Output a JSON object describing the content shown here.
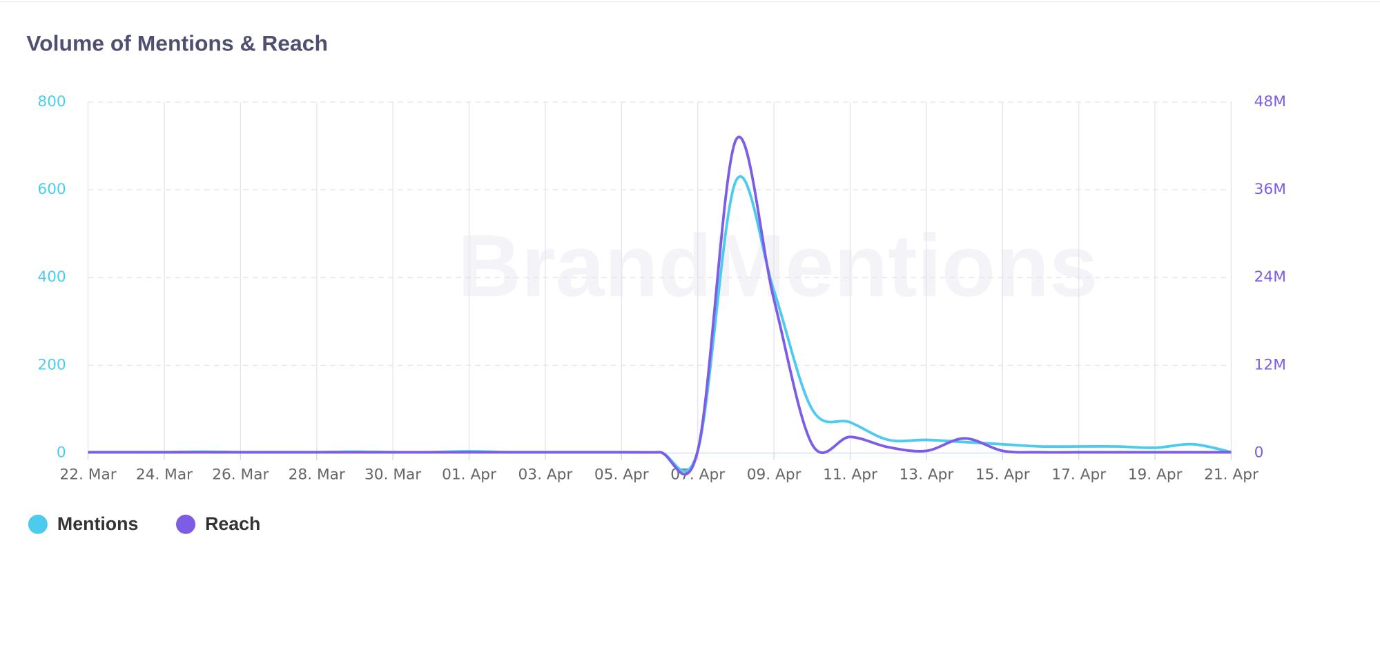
{
  "chart_data": {
    "type": "line",
    "title": "Volume of Mentions & Reach",
    "watermark": "BrandMentions",
    "categories": [
      "22. Mar",
      null,
      "24. Mar",
      null,
      "26. Mar",
      null,
      "28. Mar",
      null,
      "30. Mar",
      null,
      "01. Apr",
      null,
      "03. Apr",
      null,
      "05. Apr",
      null,
      "07. Apr",
      null,
      "09. Apr",
      null,
      "11. Apr",
      null,
      "13. Apr",
      null,
      "15. Apr",
      null,
      "17. Apr",
      null,
      "19. Apr",
      null,
      "21. Apr"
    ],
    "series": [
      {
        "name": "Mentions",
        "color": "#4ccbef",
        "values": [
          2,
          2,
          2,
          3,
          2,
          2,
          2,
          3,
          2,
          2,
          4,
          2,
          2,
          2,
          2,
          2,
          5,
          620,
          370,
          100,
          70,
          30,
          30,
          25,
          20,
          15,
          15,
          15,
          12,
          20,
          2
        ]
      },
      {
        "name": "Reach",
        "color": "#7d5ce6",
        "axis": "y2",
        "values": [
          100000,
          100000,
          100000,
          100000,
          100000,
          100000,
          100000,
          100000,
          100000,
          100000,
          100000,
          100000,
          100000,
          100000,
          100000,
          100000,
          300000,
          42800000,
          21000000,
          1200000,
          2200000,
          800000,
          300000,
          2000000,
          300000,
          100000,
          100000,
          100000,
          100000,
          100000,
          100000
        ]
      }
    ],
    "ylim": [
      0,
      800
    ],
    "yticks": [
      0,
      200,
      400,
      600,
      800
    ],
    "y2lim": [
      0,
      48000000
    ],
    "y2ticks": [
      0,
      {
        "value": 12000000,
        "label": "12M"
      },
      {
        "value": 24000000,
        "label": "24M"
      },
      {
        "value": 36000000,
        "label": "36M"
      },
      {
        "value": 48000000,
        "label": "48M"
      }
    ],
    "grid": true,
    "legend": "bottom-left"
  }
}
